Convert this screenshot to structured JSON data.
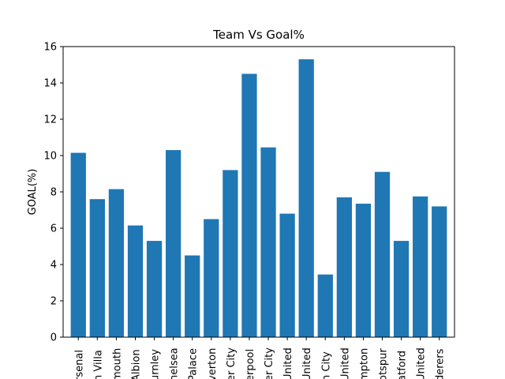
{
  "chart_data": {
    "type": "bar",
    "title": "Team Vs Goal%",
    "xlabel": "",
    "ylabel": "GOAL(%)",
    "ylim": [
      0,
      16
    ],
    "yticks": [
      0,
      2,
      4,
      6,
      8,
      10,
      12,
      14,
      16
    ],
    "grid": false,
    "bar_color": "#1f77b4",
    "categories": [
      "Arsenal",
      "Aston Villa",
      "Bournemouth",
      "Brighton & Hove Albion",
      "Burnley",
      "Chelsea",
      "Crystal Palace",
      "Everton",
      "Leicester City",
      "Liverpool",
      "Manchester City",
      "Manchester United",
      "Newcastle United",
      "Norwich City",
      "Sheffield United",
      "Southampton",
      "Tottenham Hotspur",
      "Watford",
      "West Ham United",
      "Wolverhampton Wanderers"
    ],
    "tick_labels": [
      "rsenal",
      "n Villa",
      "mouth",
      "Albion",
      "urnley",
      "helsea",
      "Palace",
      "verton",
      "er City",
      "erpool",
      "er City",
      "United",
      "United",
      "h City",
      "United",
      "mpton",
      "otspur",
      "atford",
      "United",
      "derers"
    ],
    "values": [
      10.15,
      7.6,
      8.15,
      6.15,
      5.3,
      10.3,
      4.5,
      6.5,
      9.2,
      14.5,
      10.45,
      6.8,
      15.3,
      3.45,
      7.7,
      7.35,
      9.1,
      5.3,
      7.75,
      7.2
    ]
  }
}
